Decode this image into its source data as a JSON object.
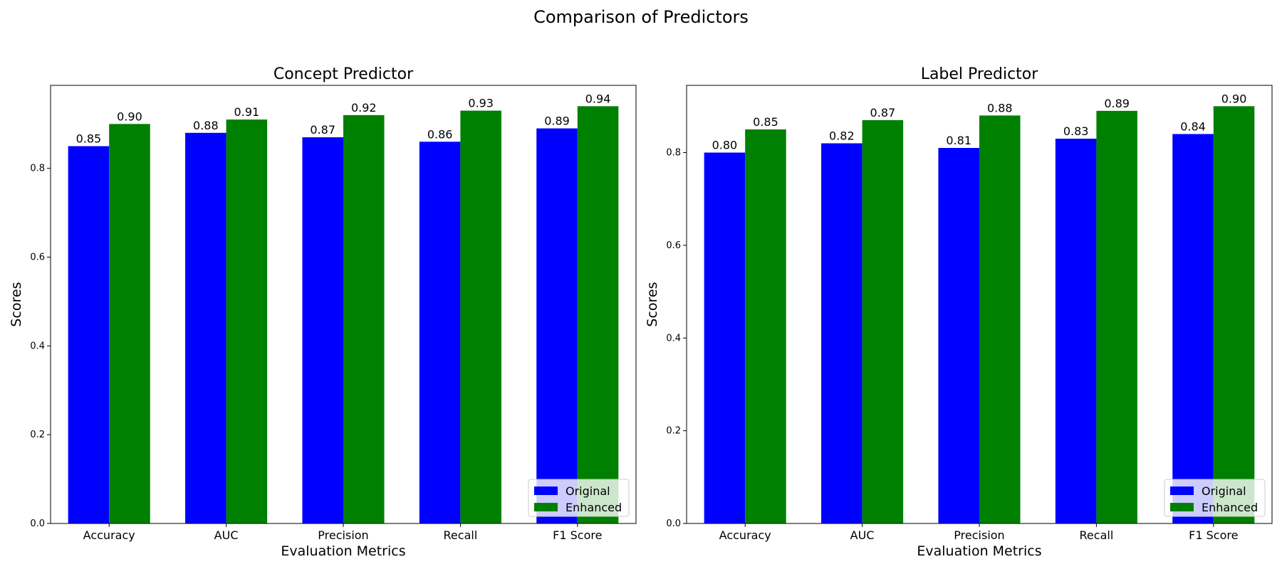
{
  "suptitle": "Comparison of Predictors",
  "colors": {
    "Original": "#0000ff",
    "Enhanced": "#008000"
  },
  "chart_data": [
    {
      "type": "bar",
      "title": "Concept Predictor",
      "xlabel": "Evaluation Metrics",
      "ylabel": "Scores",
      "categories": [
        "Accuracy",
        "AUC",
        "Precision",
        "Recall",
        "F1 Score"
      ],
      "series": [
        {
          "name": "Original",
          "values": [
            0.85,
            0.88,
            0.87,
            0.86,
            0.89
          ],
          "labels": [
            "0.85",
            "0.88",
            "0.87",
            "0.86",
            "0.89"
          ]
        },
        {
          "name": "Enhanced",
          "values": [
            0.9,
            0.91,
            0.92,
            0.93,
            0.94
          ],
          "labels": [
            "0.90",
            "0.91",
            "0.92",
            "0.93",
            "0.94"
          ]
        }
      ],
      "ylim": [
        0,
        0.987
      ],
      "yticks": [
        0.0,
        0.2,
        0.4,
        0.6,
        0.8
      ],
      "ytick_labels": [
        "0.0",
        "0.2",
        "0.4",
        "0.6",
        "0.8"
      ],
      "legend": "lower right",
      "grid": false
    },
    {
      "type": "bar",
      "title": "Label Predictor",
      "xlabel": "Evaluation Metrics",
      "ylabel": "Scores",
      "categories": [
        "Accuracy",
        "AUC",
        "Precision",
        "Recall",
        "F1 Score"
      ],
      "series": [
        {
          "name": "Original",
          "values": [
            0.8,
            0.82,
            0.81,
            0.83,
            0.84
          ],
          "labels": [
            "0.80",
            "0.82",
            "0.81",
            "0.83",
            "0.84"
          ]
        },
        {
          "name": "Enhanced",
          "values": [
            0.85,
            0.87,
            0.88,
            0.89,
            0.9
          ],
          "labels": [
            "0.85",
            "0.87",
            "0.88",
            "0.89",
            "0.90"
          ]
        }
      ],
      "ylim": [
        0,
        0.945
      ],
      "yticks": [
        0.0,
        0.2,
        0.4,
        0.6,
        0.8
      ],
      "ytick_labels": [
        "0.0",
        "0.2",
        "0.4",
        "0.6",
        "0.8"
      ],
      "legend": "lower right",
      "grid": false
    }
  ]
}
